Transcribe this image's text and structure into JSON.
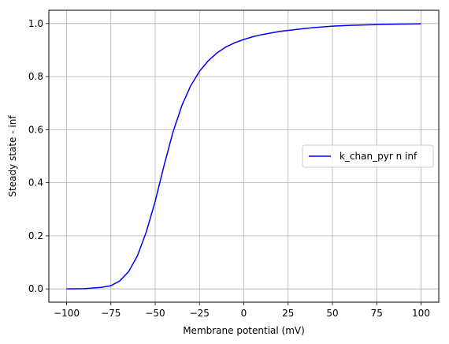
{
  "chart_data": {
    "type": "line",
    "xlabel": "Membrane potential (mV)",
    "ylabel": "Steady state - inf",
    "xlim": [
      -110,
      110
    ],
    "ylim": [
      -0.05,
      1.05
    ],
    "xticks": [
      -100,
      -75,
      -50,
      -25,
      0,
      25,
      50,
      75,
      100
    ],
    "xtick_labels": [
      "−100",
      "−75",
      "−50",
      "−25",
      "0",
      "25",
      "50",
      "75",
      "100"
    ],
    "yticks": [
      0.0,
      0.2,
      0.4,
      0.6,
      0.8,
      1.0
    ],
    "ytick_labels": [
      "0.0",
      "0.2",
      "0.4",
      "0.6",
      "0.8",
      "1.0"
    ],
    "grid": true,
    "legend_position": "center-right",
    "series": [
      {
        "name": "k_chan_pyr n inf",
        "color": "#0000ff",
        "x": [
          -100,
          -90,
          -80,
          -75,
          -70,
          -65,
          -60,
          -55,
          -50,
          -45,
          -40,
          -35,
          -30,
          -25,
          -20,
          -15,
          -10,
          -5,
          0,
          5,
          10,
          20,
          30,
          40,
          50,
          60,
          70,
          80,
          90,
          100
        ],
        "y": [
          0.0,
          0.001,
          0.006,
          0.012,
          0.03,
          0.065,
          0.125,
          0.215,
          0.33,
          0.465,
          0.59,
          0.69,
          0.765,
          0.82,
          0.86,
          0.89,
          0.912,
          0.928,
          0.94,
          0.95,
          0.958,
          0.97,
          0.978,
          0.985,
          0.99,
          0.993,
          0.995,
          0.997,
          0.998,
          0.999
        ]
      }
    ]
  }
}
